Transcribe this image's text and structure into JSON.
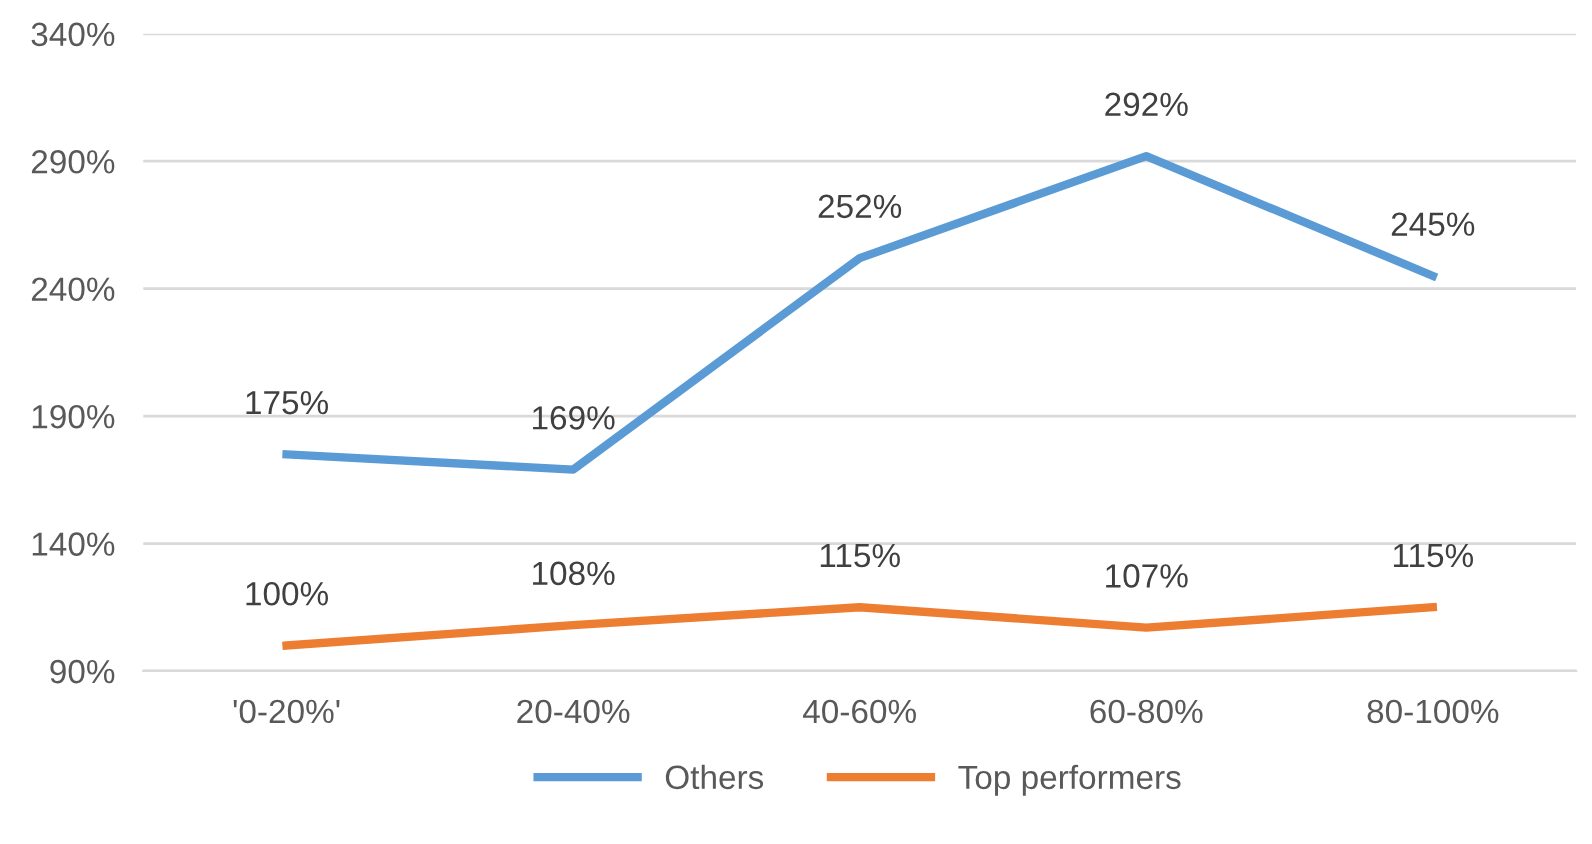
{
  "chart_data": {
    "type": "line",
    "categories": [
      "'0-20%'",
      "20-40%",
      "40-60%",
      "60-80%",
      "80-100%"
    ],
    "series": [
      {
        "name": "Others",
        "color": "#5b9bd5",
        "values": [
          175,
          169,
          252,
          292,
          245
        ],
        "value_labels": [
          "175%",
          "169%",
          "252%",
          "292%",
          "245%"
        ]
      },
      {
        "name": "Top performers",
        "color": "#ed7d31",
        "values": [
          100,
          108,
          115,
          107,
          115
        ],
        "value_labels": [
          "100%",
          "108%",
          "115%",
          "107%",
          "115%"
        ]
      }
    ],
    "ylim": [
      90,
      340
    ],
    "yticks": [
      {
        "value": 90,
        "label": "90%"
      },
      {
        "value": 140,
        "label": "140%"
      },
      {
        "value": 190,
        "label": "190%"
      },
      {
        "value": 240,
        "label": "240%"
      },
      {
        "value": 290,
        "label": "290%"
      },
      {
        "value": 340,
        "label": "340%"
      }
    ],
    "grid": "y",
    "legend": "bottom",
    "marker": "none",
    "line_style": "solid"
  }
}
